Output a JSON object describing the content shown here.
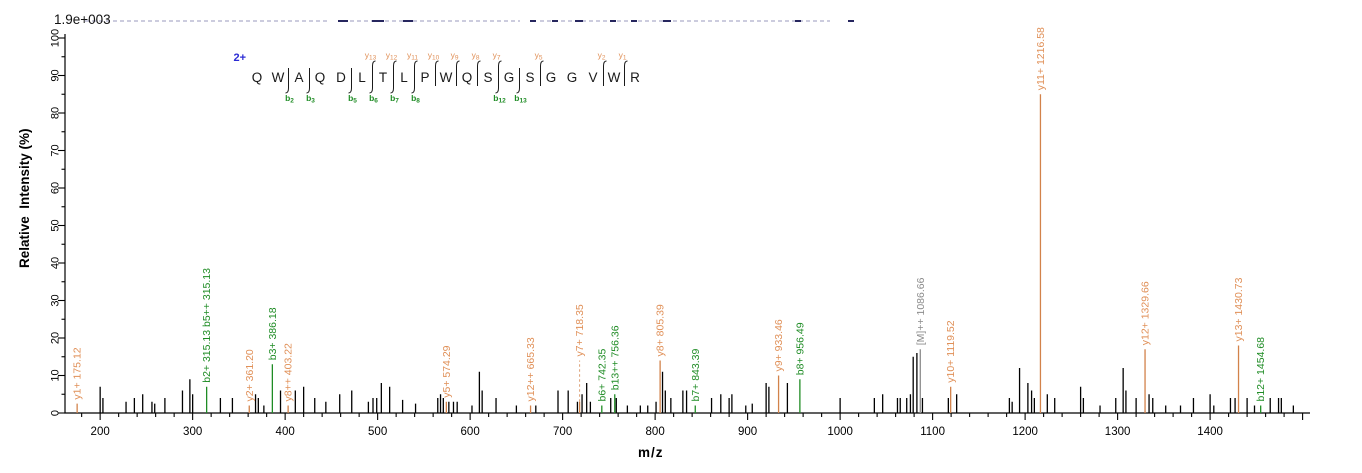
{
  "header": {
    "base_peak_intensity": "1.9e+003"
  },
  "axes": {
    "x_title": "m/z",
    "y_title": "Relative  Intensity (%)",
    "x_major_tick_labels": [
      200,
      300,
      400,
      500,
      600,
      700,
      800,
      900,
      1000,
      1100,
      1200,
      1300,
      1400
    ],
    "x_minor_step": 20,
    "y_major_tick_labels": [
      0,
      10,
      20,
      30,
      40,
      50,
      60,
      70,
      80,
      90,
      100
    ],
    "y_minor_step": 5
  },
  "colors": {
    "y_ion": "#D2824A",
    "y_ion_label": "#E09058",
    "b_ion": "#1F8C25",
    "precursor": "#8C8C8C",
    "peak": "#000000",
    "charge": "#2B2BD4",
    "axis": "#000000",
    "sequence": "#1A1A1A"
  },
  "peptide": {
    "charge_label": "2+",
    "residues": [
      "Q",
      "W",
      "A",
      "Q",
      "D",
      "L",
      "T",
      "L",
      "P",
      "W",
      "Q",
      "S",
      "G",
      "S",
      "G",
      "G",
      "V",
      "W",
      "R"
    ],
    "cleavages": [
      {
        "after": 2,
        "b": 2
      },
      {
        "after": 3,
        "b": 3
      },
      {
        "after": 5,
        "b": 5
      },
      {
        "after": 6,
        "b": 6,
        "y": 13
      },
      {
        "after": 7,
        "b": 7,
        "y": 12
      },
      {
        "after": 8,
        "b": 8,
        "y": 11
      },
      {
        "after": 9,
        "y": 10
      },
      {
        "after": 10,
        "y": 9
      },
      {
        "after": 11,
        "y": 8
      },
      {
        "after": 12,
        "b": 12,
        "y": 7
      },
      {
        "after": 13,
        "b": 13
      },
      {
        "after": 14,
        "y": 5
      },
      {
        "after": 17,
        "y": 2
      },
      {
        "after": 18,
        "y": 1
      }
    ]
  },
  "chart_data": {
    "type": "bar",
    "subtype": "ms2-fragmentation-spectrum",
    "title": "1.9e+003",
    "xlabel": "m/z",
    "ylabel": "Relative Intensity (%)",
    "xlim": [
      162,
      1508
    ],
    "ylim": [
      0,
      100
    ],
    "grid": false,
    "labeled_peaks": [
      {
        "mz": 175.12,
        "pct": 2.5,
        "ion": "y",
        "label": "y1+ 175.12"
      },
      {
        "mz": 315.13,
        "pct": 7,
        "ion": "b",
        "label": "b2+ 315.13  b5++ 315.13"
      },
      {
        "mz": 361.2,
        "pct": 2,
        "ion": "y",
        "label": "y2+ 361.20"
      },
      {
        "mz": 386.18,
        "pct": 13,
        "ion": "b",
        "label": "b3+ 386.18"
      },
      {
        "mz": 403.22,
        "pct": 2,
        "ion": "y",
        "label": "y8++ 403.22"
      },
      {
        "mz": 574.29,
        "pct": 3,
        "ion": "y",
        "label": "y5+ 574.29"
      },
      {
        "mz": 665.33,
        "pct": 2,
        "ion": "y",
        "label": "y12++ 665.33"
      },
      {
        "mz": 718.35,
        "pct": 3,
        "ion": "y",
        "label": "y7+ 718.35",
        "lift_pct": 14,
        "dashed_connector": true
      },
      {
        "mz": 742.35,
        "pct": 2,
        "ion": "b",
        "label": "b6+ 742.35"
      },
      {
        "mz": 756.36,
        "pct": 5,
        "ion": "b",
        "label": "b13++ 756.36"
      },
      {
        "mz": 805.39,
        "pct": 14,
        "ion": "y",
        "label": "y8+ 805.39"
      },
      {
        "mz": 843.39,
        "pct": 2,
        "ion": "b",
        "label": "b7+ 843.39"
      },
      {
        "mz": 933.46,
        "pct": 10,
        "ion": "y",
        "label": "y9+ 933.46"
      },
      {
        "mz": 956.49,
        "pct": 9,
        "ion": "b",
        "label": "b8+ 956.49"
      },
      {
        "mz": 1086.66,
        "pct": 17,
        "ion": "M",
        "label": "[M]++ 1086.66"
      },
      {
        "mz": 1119.52,
        "pct": 7,
        "ion": "y",
        "label": "y10+ 1119.52"
      },
      {
        "mz": 1216.58,
        "pct": 100,
        "draw_pct": 85,
        "ion": "y",
        "label": "y11+ 1216.58"
      },
      {
        "mz": 1329.66,
        "pct": 17,
        "ion": "y",
        "label": "y12+ 1329.66"
      },
      {
        "mz": 1430.73,
        "pct": 18,
        "ion": "y",
        "label": "y13+ 1430.73"
      },
      {
        "mz": 1454.68,
        "pct": 2,
        "ion": "b",
        "label": "b12+ 1454.68"
      }
    ],
    "unlabeled_peaks": [
      [
        200,
        7
      ],
      [
        203,
        4
      ],
      [
        228,
        3
      ],
      [
        237,
        4
      ],
      [
        246,
        5
      ],
      [
        256,
        3
      ],
      [
        259,
        2.5
      ],
      [
        270,
        4
      ],
      [
        289,
        6
      ],
      [
        297,
        9
      ],
      [
        300,
        5
      ],
      [
        330,
        4
      ],
      [
        343,
        4
      ],
      [
        368,
        5
      ],
      [
        371,
        4
      ],
      [
        377,
        2
      ],
      [
        395,
        6
      ],
      [
        411,
        6
      ],
      [
        420,
        7
      ],
      [
        432,
        4
      ],
      [
        444,
        3
      ],
      [
        459,
        5
      ],
      [
        472,
        6
      ],
      [
        490,
        3
      ],
      [
        495,
        4
      ],
      [
        499,
        4
      ],
      [
        504,
        8
      ],
      [
        513,
        7
      ],
      [
        527,
        3.5
      ],
      [
        541,
        2.5
      ],
      [
        565,
        4
      ],
      [
        568,
        5
      ],
      [
        571,
        4
      ],
      [
        577,
        3
      ],
      [
        582,
        3
      ],
      [
        586,
        3
      ],
      [
        602,
        2
      ],
      [
        610,
        11
      ],
      [
        613,
        6
      ],
      [
        628,
        4
      ],
      [
        650,
        2
      ],
      [
        671,
        2
      ],
      [
        695,
        6
      ],
      [
        706,
        6
      ],
      [
        716,
        3
      ],
      [
        721,
        5
      ],
      [
        726,
        8
      ],
      [
        730,
        3
      ],
      [
        752,
        4
      ],
      [
        758,
        4
      ],
      [
        770,
        2
      ],
      [
        784,
        2
      ],
      [
        792,
        2
      ],
      [
        801,
        3
      ],
      [
        808,
        11
      ],
      [
        811,
        6
      ],
      [
        817,
        4
      ],
      [
        830,
        6
      ],
      [
        834,
        6
      ],
      [
        861,
        4
      ],
      [
        871,
        5
      ],
      [
        880,
        4
      ],
      [
        883,
        5
      ],
      [
        898,
        2
      ],
      [
        905,
        2.5
      ],
      [
        920,
        8
      ],
      [
        923,
        7
      ],
      [
        943,
        8
      ],
      [
        1000,
        4
      ],
      [
        1037,
        4
      ],
      [
        1046,
        5
      ],
      [
        1062,
        4
      ],
      [
        1065,
        4
      ],
      [
        1072,
        4
      ],
      [
        1076,
        5
      ],
      [
        1079,
        15
      ],
      [
        1083,
        16
      ],
      [
        1089,
        4
      ],
      [
        1117,
        4
      ],
      [
        1126,
        5
      ],
      [
        1183,
        4
      ],
      [
        1186,
        3
      ],
      [
        1194,
        12
      ],
      [
        1203,
        8
      ],
      [
        1207,
        6
      ],
      [
        1210,
        4
      ],
      [
        1224,
        5
      ],
      [
        1232,
        4
      ],
      [
        1260,
        7
      ],
      [
        1263,
        4
      ],
      [
        1281,
        2
      ],
      [
        1298,
        4
      ],
      [
        1306,
        12
      ],
      [
        1309,
        6
      ],
      [
        1320,
        4
      ],
      [
        1334,
        5
      ],
      [
        1338,
        4
      ],
      [
        1352,
        2
      ],
      [
        1368,
        2
      ],
      [
        1382,
        4
      ],
      [
        1400,
        5
      ],
      [
        1404,
        2
      ],
      [
        1422,
        4
      ],
      [
        1427,
        4
      ],
      [
        1440,
        4
      ],
      [
        1448,
        2
      ],
      [
        1465,
        4
      ],
      [
        1474,
        4
      ],
      [
        1477,
        4
      ],
      [
        1490,
        2
      ]
    ]
  },
  "artifacts": {
    "faint_line_y": 21,
    "faint_segments": [
      [
        85,
        245
      ],
      [
        350,
        170
      ],
      [
        540,
        290
      ]
    ],
    "dark_dashes": [
      [
        338,
        10
      ],
      [
        372,
        12
      ],
      [
        403,
        10
      ],
      [
        530,
        6
      ],
      [
        552,
        6
      ],
      [
        575,
        8
      ],
      [
        610,
        6
      ],
      [
        631,
        6
      ],
      [
        663,
        8
      ],
      [
        795,
        6
      ],
      [
        848,
        6
      ]
    ]
  }
}
